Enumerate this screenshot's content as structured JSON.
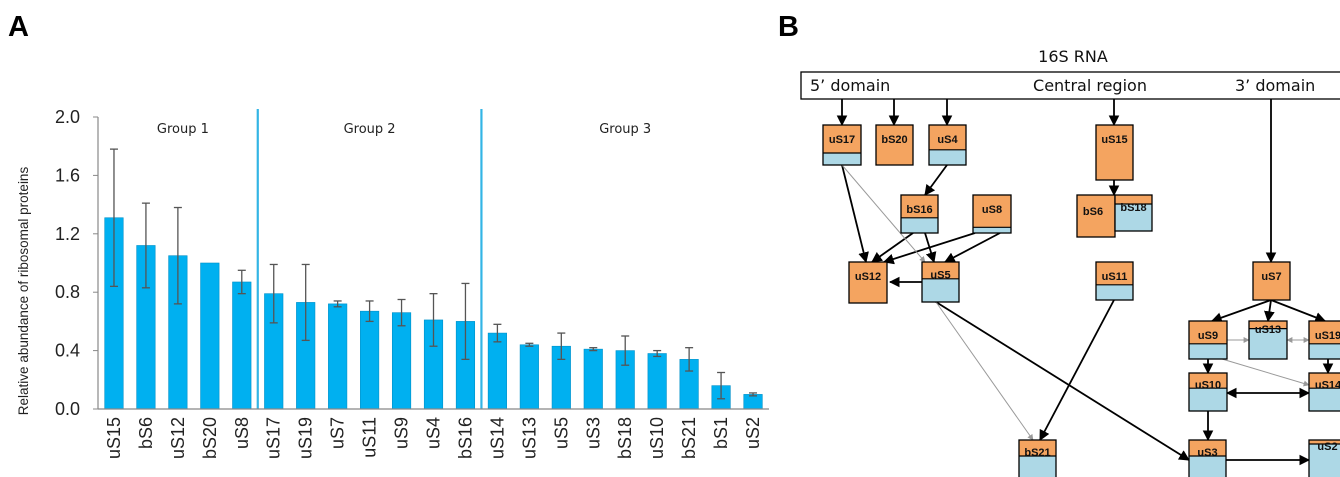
{
  "panel_a_label": "A",
  "panel_b_label": "B",
  "chart_data": {
    "type": "bar",
    "ylabel": "Relative abundance of ribosomal proteins",
    "xlabel": "",
    "ylim": [
      0,
      2.0
    ],
    "yticks": [
      "0.0",
      "0.4",
      "0.8",
      "1.2",
      "1.6",
      "2.0"
    ],
    "bar_color": "#00b0f0",
    "divider_color": "#33b5e5",
    "categories": [
      "uS15",
      "bS6",
      "uS12",
      "bS20",
      "uS8",
      "uS17",
      "uS19",
      "uS7",
      "uS11",
      "uS9",
      "uS4",
      "bS16",
      "uS14",
      "uS13",
      "uS5",
      "uS3",
      "bS18",
      "uS10",
      "bS21",
      "bS1",
      "uS2"
    ],
    "values": [
      1.31,
      1.12,
      1.05,
      1.0,
      0.87,
      0.79,
      0.73,
      0.72,
      0.67,
      0.66,
      0.61,
      0.6,
      0.52,
      0.44,
      0.43,
      0.41,
      0.4,
      0.38,
      0.34,
      0.16,
      0.1
    ],
    "errors": [
      0.47,
      0.29,
      0.33,
      0.0,
      0.08,
      0.2,
      0.26,
      0.02,
      0.07,
      0.09,
      0.18,
      0.26,
      0.06,
      0.01,
      0.09,
      0.01,
      0.1,
      0.02,
      0.08,
      0.09,
      0.01
    ],
    "groups": [
      {
        "label": "Group 1",
        "start": 0,
        "end": 4
      },
      {
        "label": "Group 2",
        "start": 5,
        "end": 11
      },
      {
        "label": "Group 3",
        "start": 12,
        "end": 20
      }
    ]
  },
  "diagram": {
    "title": "16S RNA",
    "domains": [
      "5’ domain",
      "Central region",
      "3’ domain"
    ],
    "colors": {
      "orange": "#f4a460",
      "blue": "#add8e6"
    },
    "nodes": [
      {
        "id": "uS17",
        "label": "uS17"
      },
      {
        "id": "bS20",
        "label": "bS20"
      },
      {
        "id": "uS4",
        "label": "uS4"
      },
      {
        "id": "uS15",
        "label": "uS15"
      },
      {
        "id": "bS16",
        "label": "bS16"
      },
      {
        "id": "uS8",
        "label": "uS8"
      },
      {
        "id": "bS6",
        "label": "bS6"
      },
      {
        "id": "bS18",
        "label": "bS18"
      },
      {
        "id": "uS12",
        "label": "uS12"
      },
      {
        "id": "uS5",
        "label": "uS5"
      },
      {
        "id": "uS11",
        "label": "uS11"
      },
      {
        "id": "uS7",
        "label": "uS7"
      },
      {
        "id": "uS9",
        "label": "uS9"
      },
      {
        "id": "uS13",
        "label": "uS13"
      },
      {
        "id": "uS19",
        "label": "uS19"
      },
      {
        "id": "uS10",
        "label": "uS10"
      },
      {
        "id": "uS14",
        "label": "uS14"
      },
      {
        "id": "bS21",
        "label": "bS21"
      },
      {
        "id": "uS3",
        "label": "uS3"
      },
      {
        "id": "uS2",
        "label": "uS2"
      }
    ]
  }
}
